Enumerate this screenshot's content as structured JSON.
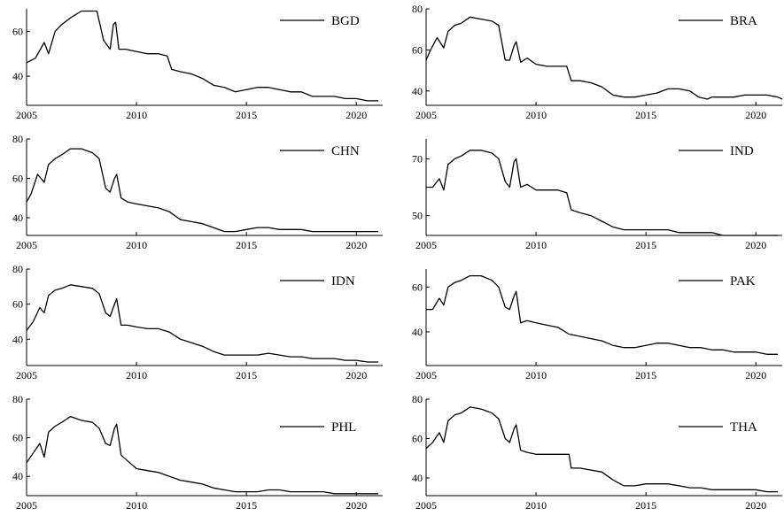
{
  "chart_data": [
    {
      "type": "line",
      "title": "",
      "xlabel": "",
      "ylabel": "",
      "xlim": [
        2005,
        2021.2
      ],
      "ylim": [
        27,
        70
      ],
      "xticks": [
        2005,
        2010,
        2015,
        2020
      ],
      "yticks": [
        40,
        60
      ],
      "legend_position": "top-right",
      "series": [
        {
          "name": "BGD",
          "x": [
            2005.0,
            2005.4,
            2005.8,
            2006.0,
            2006.3,
            2006.6,
            2007.0,
            2007.5,
            2008.0,
            2008.2,
            2008.5,
            2008.8,
            2008.95,
            2009.05,
            2009.2,
            2009.5,
            2010.0,
            2010.5,
            2011.0,
            2011.4,
            2011.6,
            2012.0,
            2012.5,
            2013.0,
            2013.5,
            2014.0,
            2014.5,
            2015.0,
            2015.5,
            2016.0,
            2016.5,
            2017.0,
            2017.5,
            2018.0,
            2018.5,
            2019.0,
            2019.5,
            2020.0,
            2020.5,
            2021.0
          ],
          "y": [
            46,
            48,
            55,
            50,
            60,
            63,
            66,
            69,
            69,
            69,
            56,
            52,
            63,
            64,
            52,
            52,
            51,
            50,
            50,
            49,
            43,
            42,
            41,
            39,
            36,
            35,
            33,
            34,
            35,
            35,
            34,
            33,
            33,
            31,
            31,
            31,
            30,
            30,
            29,
            29
          ]
        }
      ]
    },
    {
      "type": "line",
      "title": "",
      "xlabel": "",
      "ylabel": "",
      "xlim": [
        2005,
        2021.2
      ],
      "ylim": [
        33,
        80
      ],
      "xticks": [
        2005,
        2010,
        2015,
        2020
      ],
      "yticks": [
        40,
        60,
        80
      ],
      "legend_position": "top-right",
      "series": [
        {
          "name": "BRA",
          "x": [
            2005.0,
            2005.2,
            2005.5,
            2005.8,
            2006.0,
            2006.3,
            2006.6,
            2007.0,
            2007.5,
            2008.0,
            2008.3,
            2008.6,
            2008.8,
            2009.0,
            2009.1,
            2009.3,
            2009.6,
            2010.0,
            2010.5,
            2011.0,
            2011.4,
            2011.6,
            2012.0,
            2012.5,
            2013.0,
            2013.5,
            2014.0,
            2014.5,
            2015.0,
            2015.5,
            2016.0,
            2016.5,
            2017.0,
            2017.4,
            2017.8,
            2018.0,
            2018.5,
            2019.0,
            2019.5,
            2020.0,
            2020.5,
            2021.0,
            2021.2
          ],
          "y": [
            55,
            60,
            66,
            61,
            69,
            72,
            73,
            76,
            75,
            74,
            72,
            55,
            55,
            62,
            64,
            54,
            56,
            53,
            52,
            52,
            52,
            45,
            45,
            44,
            42,
            38,
            37,
            37,
            38,
            39,
            41,
            41,
            40,
            37,
            36,
            37,
            37,
            37,
            38,
            38,
            38,
            37,
            36
          ]
        }
      ]
    },
    {
      "type": "line",
      "title": "",
      "xlabel": "",
      "ylabel": "",
      "xlim": [
        2005,
        2021.2
      ],
      "ylim": [
        31,
        80
      ],
      "xticks": [
        2005,
        2010,
        2015,
        2020
      ],
      "yticks": [
        40,
        60,
        80
      ],
      "legend_position": "top-right",
      "series": [
        {
          "name": "CHN",
          "x": [
            2005.0,
            2005.2,
            2005.5,
            2005.8,
            2006.0,
            2006.3,
            2006.6,
            2007.0,
            2007.5,
            2008.0,
            2008.3,
            2008.6,
            2008.8,
            2009.0,
            2009.1,
            2009.3,
            2009.6,
            2010.0,
            2010.5,
            2011.0,
            2011.5,
            2012.0,
            2012.5,
            2013.0,
            2013.5,
            2014.0,
            2014.5,
            2015.0,
            2015.5,
            2016.0,
            2016.5,
            2017.0,
            2017.5,
            2018.0,
            2018.5,
            2019.0,
            2019.5,
            2020.0,
            2020.5,
            2021.0
          ],
          "y": [
            48,
            52,
            62,
            58,
            67,
            70,
            72,
            75,
            75,
            73,
            70,
            55,
            53,
            60,
            62,
            50,
            48,
            47,
            46,
            45,
            43,
            39,
            38,
            37,
            35,
            33,
            33,
            34,
            35,
            35,
            34,
            34,
            34,
            33,
            33,
            33,
            33,
            33,
            33,
            33
          ]
        }
      ]
    },
    {
      "type": "line",
      "title": "",
      "xlabel": "",
      "ylabel": "",
      "xlim": [
        2005,
        2021.2
      ],
      "ylim": [
        43,
        77
      ],
      "xticks": [
        2005,
        2010,
        2015,
        2020
      ],
      "yticks": [
        50,
        70
      ],
      "legend_position": "top-right",
      "series": [
        {
          "name": "IND",
          "x": [
            2005.0,
            2005.3,
            2005.6,
            2005.8,
            2006.0,
            2006.3,
            2006.6,
            2007.0,
            2007.5,
            2008.0,
            2008.3,
            2008.6,
            2008.8,
            2009.0,
            2009.1,
            2009.3,
            2009.6,
            2010.0,
            2010.5,
            2011.0,
            2011.4,
            2011.6,
            2012.0,
            2012.5,
            2013.0,
            2013.5,
            2014.0,
            2014.5,
            2015.0,
            2015.5,
            2016.0,
            2016.5,
            2017.0,
            2017.5,
            2018.0,
            2018.5,
            2019.0,
            2019.5,
            2020.0,
            2020.5,
            2021.0
          ],
          "y": [
            60,
            60,
            63,
            59,
            68,
            70,
            71,
            73,
            73,
            72,
            70,
            62,
            60,
            69,
            70,
            60,
            61,
            59,
            59,
            59,
            58,
            52,
            51,
            50,
            48,
            46,
            45,
            45,
            45,
            45,
            45,
            44,
            44,
            44,
            44,
            43,
            43,
            43,
            43,
            43,
            43
          ]
        }
      ]
    },
    {
      "type": "line",
      "title": "",
      "xlabel": "",
      "ylabel": "",
      "xlim": [
        2005,
        2021.2
      ],
      "ylim": [
        25,
        80
      ],
      "xticks": [
        2005,
        2010,
        2015,
        2020
      ],
      "yticks": [
        40,
        60,
        80
      ],
      "legend_position": "top-right",
      "series": [
        {
          "name": "IDN",
          "x": [
            2005.0,
            2005.3,
            2005.6,
            2005.8,
            2006.0,
            2006.3,
            2006.6,
            2007.0,
            2007.5,
            2008.0,
            2008.3,
            2008.6,
            2008.8,
            2009.0,
            2009.1,
            2009.3,
            2009.6,
            2010.0,
            2010.5,
            2011.0,
            2011.5,
            2012.0,
            2012.5,
            2013.0,
            2013.5,
            2014.0,
            2014.5,
            2015.0,
            2015.5,
            2016.0,
            2016.5,
            2017.0,
            2017.5,
            2018.0,
            2018.5,
            2019.0,
            2019.5,
            2020.0,
            2020.5,
            2021.0
          ],
          "y": [
            45,
            50,
            58,
            55,
            65,
            68,
            69,
            71,
            70,
            69,
            66,
            55,
            53,
            60,
            63,
            48,
            48,
            47,
            46,
            46,
            44,
            40,
            38,
            36,
            33,
            31,
            31,
            31,
            31,
            32,
            31,
            30,
            30,
            29,
            29,
            29,
            28,
            28,
            27,
            27
          ]
        }
      ]
    },
    {
      "type": "line",
      "title": "",
      "xlabel": "",
      "ylabel": "",
      "xlim": [
        2005,
        2021.2
      ],
      "ylim": [
        25,
        68
      ],
      "xticks": [
        2005,
        2010,
        2015,
        2020
      ],
      "yticks": [
        40,
        60
      ],
      "legend_position": "top-right",
      "series": [
        {
          "name": "PAK",
          "x": [
            2005.0,
            2005.3,
            2005.6,
            2005.8,
            2006.0,
            2006.3,
            2006.6,
            2007.0,
            2007.5,
            2008.0,
            2008.3,
            2008.6,
            2008.8,
            2009.0,
            2009.1,
            2009.3,
            2009.6,
            2010.0,
            2010.5,
            2011.0,
            2011.5,
            2012.0,
            2012.5,
            2013.0,
            2013.5,
            2014.0,
            2014.5,
            2015.0,
            2015.5,
            2016.0,
            2016.5,
            2017.0,
            2017.5,
            2018.0,
            2018.5,
            2019.0,
            2019.5,
            2020.0,
            2020.5,
            2021.0
          ],
          "y": [
            50,
            50,
            55,
            52,
            60,
            62,
            63,
            65,
            65,
            63,
            60,
            51,
            50,
            56,
            58,
            44,
            45,
            44,
            43,
            42,
            39,
            38,
            37,
            36,
            34,
            33,
            33,
            34,
            35,
            35,
            34,
            33,
            33,
            32,
            32,
            31,
            31,
            31,
            30,
            30
          ]
        }
      ]
    },
    {
      "type": "line",
      "title": "",
      "xlabel": "",
      "ylabel": "",
      "xlim": [
        2005,
        2021.2
      ],
      "ylim": [
        30,
        80
      ],
      "xticks": [
        2005,
        2010,
        2015,
        2020
      ],
      "yticks": [
        40,
        60,
        80
      ],
      "legend_position": "right",
      "series": [
        {
          "name": "PHL",
          "x": [
            2005.0,
            2005.3,
            2005.6,
            2005.8,
            2006.0,
            2006.3,
            2006.6,
            2007.0,
            2007.5,
            2008.0,
            2008.3,
            2008.6,
            2008.8,
            2009.0,
            2009.1,
            2009.3,
            2009.6,
            2010.0,
            2010.5,
            2011.0,
            2011.5,
            2012.0,
            2012.5,
            2013.0,
            2013.5,
            2014.0,
            2014.5,
            2015.0,
            2015.5,
            2016.0,
            2016.5,
            2017.0,
            2017.5,
            2018.0,
            2018.5,
            2019.0,
            2019.5,
            2020.0,
            2020.5,
            2021.0
          ],
          "y": [
            47,
            52,
            57,
            50,
            63,
            66,
            68,
            71,
            69,
            68,
            65,
            57,
            56,
            65,
            67,
            51,
            48,
            44,
            43,
            42,
            40,
            38,
            37,
            36,
            34,
            33,
            32,
            32,
            32,
            33,
            33,
            32,
            32,
            32,
            32,
            31,
            31,
            31,
            31,
            31
          ]
        }
      ]
    },
    {
      "type": "line",
      "title": "",
      "xlabel": "",
      "ylabel": "",
      "xlim": [
        2005,
        2021.2
      ],
      "ylim": [
        31,
        80
      ],
      "xticks": [
        2005,
        2010,
        2015,
        2020
      ],
      "yticks": [
        40,
        60,
        80
      ],
      "legend_position": "right",
      "series": [
        {
          "name": "THA",
          "x": [
            2005.0,
            2005.3,
            2005.6,
            2005.8,
            2006.0,
            2006.3,
            2006.6,
            2007.0,
            2007.5,
            2008.0,
            2008.3,
            2008.6,
            2008.8,
            2009.0,
            2009.1,
            2009.3,
            2009.6,
            2010.0,
            2010.5,
            2011.0,
            2011.5,
            2011.6,
            2012.0,
            2012.5,
            2013.0,
            2013.5,
            2014.0,
            2014.5,
            2015.0,
            2015.5,
            2016.0,
            2016.5,
            2017.0,
            2017.5,
            2018.0,
            2018.5,
            2019.0,
            2019.5,
            2020.0,
            2020.5,
            2021.0
          ],
          "y": [
            55,
            58,
            63,
            58,
            69,
            72,
            73,
            76,
            75,
            73,
            70,
            60,
            58,
            65,
            67,
            54,
            53,
            52,
            52,
            52,
            52,
            45,
            45,
            44,
            43,
            39,
            36,
            36,
            37,
            37,
            37,
            36,
            35,
            35,
            34,
            34,
            34,
            34,
            34,
            33,
            33
          ]
        }
      ]
    }
  ]
}
